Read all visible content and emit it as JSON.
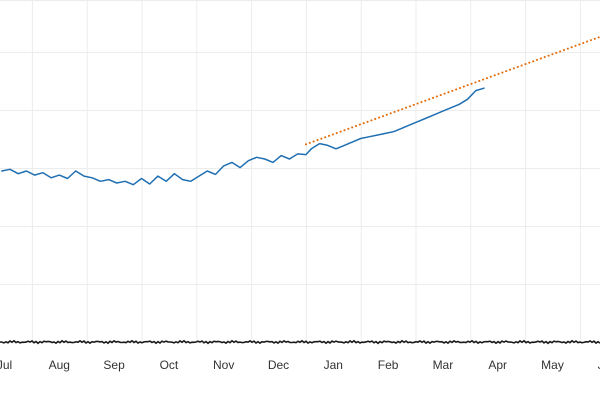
{
  "chart_data": {
    "type": "line",
    "title": "",
    "xlabel": "",
    "ylabel": "",
    "grid": true,
    "legend": "none",
    "x_tick_labels": [
      "Jul",
      "Aug",
      "Sep",
      "Oct",
      "Nov",
      "Dec",
      "Jan",
      "Feb",
      "Mar",
      "Apr",
      "May",
      "Jun"
    ],
    "xlim": [
      -0.05,
      11.0
    ],
    "ylim": [
      0,
      1
    ],
    "series": [
      {
        "color": "#1f6fb2",
        "style": "solid",
        "x": [
          -0.05,
          0.1,
          0.25,
          0.4,
          0.55,
          0.7,
          0.85,
          1.0,
          1.15,
          1.3,
          1.45,
          1.6,
          1.75,
          1.9,
          2.05,
          2.2,
          2.35,
          2.5,
          2.65,
          2.8,
          2.95,
          3.1,
          3.25,
          3.4,
          3.55,
          3.7,
          3.85,
          4.0,
          4.15,
          4.3,
          4.45,
          4.6,
          4.75,
          4.9,
          5.05,
          5.2,
          5.35,
          5.5,
          5.6,
          5.75,
          5.9,
          6.05,
          6.2,
          6.35,
          6.5,
          6.65,
          6.8,
          6.95,
          7.1,
          7.25,
          7.4,
          7.55,
          7.7,
          7.85,
          8.0,
          8.15,
          8.3,
          8.45,
          8.6,
          8.75
        ],
        "y": [
          0.5,
          0.505,
          0.492,
          0.5,
          0.488,
          0.495,
          0.48,
          0.488,
          0.478,
          0.5,
          0.485,
          0.48,
          0.47,
          0.475,
          0.465,
          0.47,
          0.46,
          0.478,
          0.462,
          0.485,
          0.47,
          0.492,
          0.475,
          0.47,
          0.485,
          0.5,
          0.49,
          0.515,
          0.525,
          0.51,
          0.53,
          0.54,
          0.535,
          0.525,
          0.545,
          0.535,
          0.55,
          0.548,
          0.565,
          0.58,
          0.575,
          0.565,
          0.575,
          0.585,
          0.595,
          0.6,
          0.605,
          0.61,
          0.615,
          0.625,
          0.635,
          0.645,
          0.655,
          0.665,
          0.675,
          0.685,
          0.695,
          0.71,
          0.735,
          0.742
        ]
      },
      {
        "color": "#e46c0a",
        "style": "dotted",
        "x": [
          5.5,
          11.0
        ],
        "y": [
          0.578,
          0.9
        ]
      }
    ]
  }
}
